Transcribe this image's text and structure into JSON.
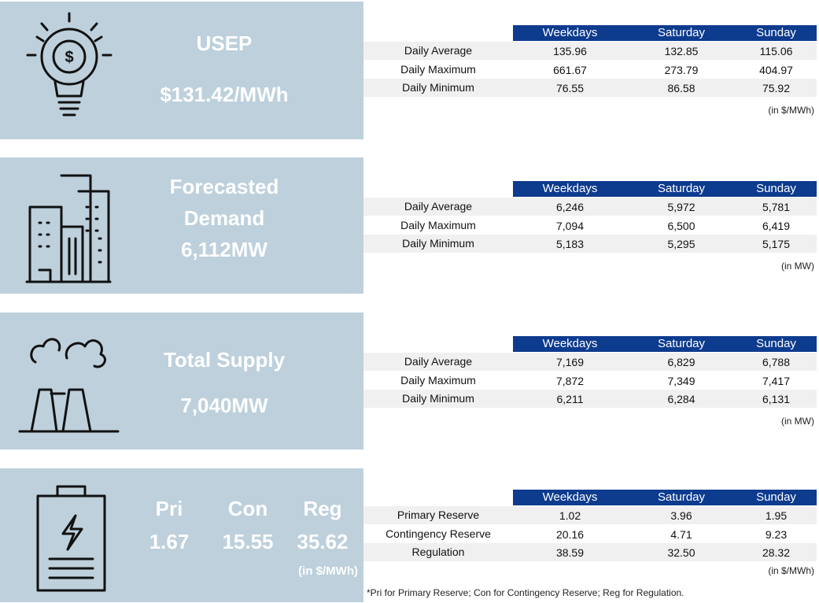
{
  "sections": [
    {
      "headline": [
        "USEP",
        "$131.42/MWh"
      ],
      "table": {
        "columns": [
          "Weekdays",
          "Saturday",
          "Sunday"
        ],
        "rows": [
          {
            "label": "Daily Average",
            "values": [
              "135.96",
              "132.85",
              "115.06"
            ]
          },
          {
            "label": "Daily Maximum",
            "values": [
              "661.67",
              "273.79",
              "404.97"
            ]
          },
          {
            "label": "Daily Minimum",
            "values": [
              "76.55",
              "86.58",
              "75.92"
            ]
          }
        ]
      },
      "unit": "(in $/MWh)"
    },
    {
      "headline": [
        "Forecasted",
        "Demand",
        "6,112MW"
      ],
      "table": {
        "columns": [
          "Weekdays",
          "Saturday",
          "Sunday"
        ],
        "rows": [
          {
            "label": "Daily Average",
            "values": [
              "6,246",
              "5,972",
              "5,781"
            ]
          },
          {
            "label": "Daily Maximum",
            "values": [
              "7,094",
              "6,500",
              "6,419"
            ]
          },
          {
            "label": "Daily Minimum",
            "values": [
              "5,183",
              "5,295",
              "5,175"
            ]
          }
        ]
      },
      "unit": "(in MW)"
    },
    {
      "headline": [
        "Total Supply",
        "7,040MW"
      ],
      "table": {
        "columns": [
          "Weekdays",
          "Saturday",
          "Sunday"
        ],
        "rows": [
          {
            "label": "Daily Average",
            "values": [
              "7,169",
              "6,829",
              "6,788"
            ]
          },
          {
            "label": "Daily Maximum",
            "values": [
              "7,872",
              "7,349",
              "7,417"
            ]
          },
          {
            "label": "Daily Minimum",
            "values": [
              "6,211",
              "6,284",
              "6,131"
            ]
          }
        ]
      },
      "unit": "(in MW)"
    },
    {
      "reserve_labels": [
        "Pri",
        "Con",
        "Reg"
      ],
      "reserve_values": [
        "1.67",
        "15.55",
        "35.62"
      ],
      "reserve_unit": "(in $/MWh)",
      "table": {
        "columns": [
          "Weekdays",
          "Saturday",
          "Sunday"
        ],
        "rows": [
          {
            "label": "Primary Reserve",
            "values": [
              "1.02",
              "3.96",
              "1.95"
            ]
          },
          {
            "label": "Contingency Reserve",
            "values": [
              "20.16",
              "4.71",
              "9.23"
            ]
          },
          {
            "label": "Regulation",
            "values": [
              "38.59",
              "32.50",
              "28.32"
            ]
          }
        ]
      },
      "unit": "(in $/MWh)"
    }
  ],
  "footnote": "*Pri for Primary Reserve; Con for Contingency Reserve; Reg for Regulation."
}
